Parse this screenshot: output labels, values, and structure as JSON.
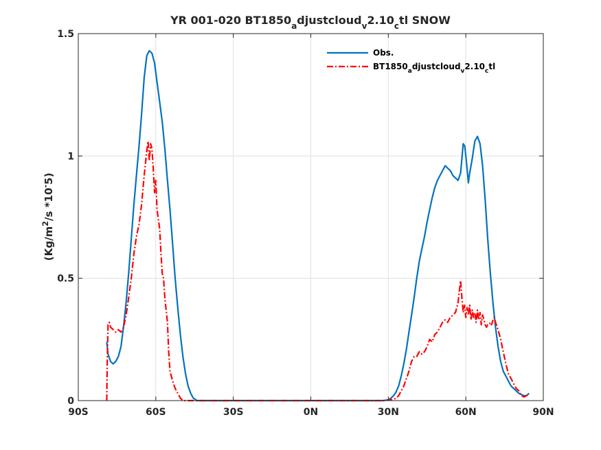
{
  "chart_data": {
    "type": "line",
    "title": "YR 001-020 BT1850_adjustcloud_v2.10_ctl SNOW",
    "ylabel": "(Kg/m^2/s *10^-5)",
    "xlabel": "",
    "xlim": [
      -90,
      90
    ],
    "ylim": [
      0,
      1.5
    ],
    "x_ticks": [
      -90,
      -60,
      -30,
      0,
      30,
      60,
      90
    ],
    "x_tick_labels": [
      "90S",
      "60S",
      "30S",
      "0N",
      "30N",
      "60N",
      "90N"
    ],
    "y_ticks": [
      0,
      0.5,
      1,
      1.5
    ],
    "y_tick_labels": [
      "0",
      "0.5",
      "1",
      "1.5"
    ],
    "grid": true,
    "legend_position": "top-right",
    "series": [
      {
        "name": "Obs.",
        "color": "#0072bd",
        "style": "solid",
        "points": [
          [
            -79,
            0.24
          ],
          [
            -78.5,
            0.19
          ],
          [
            -77.5,
            0.16
          ],
          [
            -76.5,
            0.15
          ],
          [
            -75.5,
            0.16
          ],
          [
            -74.5,
            0.18
          ],
          [
            -73.5,
            0.22
          ],
          [
            -72.5,
            0.3
          ],
          [
            -71.5,
            0.4
          ],
          [
            -70.5,
            0.52
          ],
          [
            -69.5,
            0.66
          ],
          [
            -68.5,
            0.8
          ],
          [
            -67.5,
            0.92
          ],
          [
            -66.5,
            1.04
          ],
          [
            -65.5,
            1.17
          ],
          [
            -64.5,
            1.32
          ],
          [
            -63.5,
            1.41
          ],
          [
            -62.5,
            1.43
          ],
          [
            -61.5,
            1.42
          ],
          [
            -60.5,
            1.38
          ],
          [
            -59.5,
            1.3
          ],
          [
            -58.5,
            1.22
          ],
          [
            -57.5,
            1.14
          ],
          [
            -56.5,
            1.03
          ],
          [
            -55.5,
            0.9
          ],
          [
            -54.5,
            0.78
          ],
          [
            -53.5,
            0.64
          ],
          [
            -52.5,
            0.5
          ],
          [
            -51.5,
            0.38
          ],
          [
            -50.5,
            0.27
          ],
          [
            -49.5,
            0.18
          ],
          [
            -48.5,
            0.11
          ],
          [
            -47.5,
            0.06
          ],
          [
            -46.5,
            0.03
          ],
          [
            -45.5,
            0.01
          ],
          [
            -44,
            0.0
          ],
          [
            -40,
            0.0
          ],
          [
            -30,
            0.0
          ],
          [
            -20,
            0.0
          ],
          [
            -10,
            0.0
          ],
          [
            0,
            0.0
          ],
          [
            10,
            0.0
          ],
          [
            20,
            0.0
          ],
          [
            28,
            0.0
          ],
          [
            30,
            0.003
          ],
          [
            31,
            0.01
          ],
          [
            32,
            0.02
          ],
          [
            33,
            0.035
          ],
          [
            34,
            0.06
          ],
          [
            35,
            0.1
          ],
          [
            36,
            0.15
          ],
          [
            37,
            0.21
          ],
          [
            38,
            0.28
          ],
          [
            39,
            0.35
          ],
          [
            40,
            0.42
          ],
          [
            41,
            0.5
          ],
          [
            42,
            0.57
          ],
          [
            43,
            0.62
          ],
          [
            44,
            0.67
          ],
          [
            45,
            0.73
          ],
          [
            46,
            0.78
          ],
          [
            47,
            0.83
          ],
          [
            48,
            0.87
          ],
          [
            49,
            0.9
          ],
          [
            50,
            0.92
          ],
          [
            51,
            0.94
          ],
          [
            52,
            0.96
          ],
          [
            53,
            0.95
          ],
          [
            54,
            0.94
          ],
          [
            55,
            0.92
          ],
          [
            56,
            0.91
          ],
          [
            57,
            0.9
          ],
          [
            58,
            0.93
          ],
          [
            59,
            1.05
          ],
          [
            59.6,
            1.04
          ],
          [
            60.5,
            0.95
          ],
          [
            61,
            0.89
          ],
          [
            61.5,
            0.93
          ],
          [
            62.5,
            0.99
          ],
          [
            63.5,
            1.06
          ],
          [
            64.5,
            1.08
          ],
          [
            65.5,
            1.05
          ],
          [
            66.5,
            0.96
          ],
          [
            67.5,
            0.82
          ],
          [
            68.5,
            0.66
          ],
          [
            69.5,
            0.52
          ],
          [
            70.5,
            0.4
          ],
          [
            71.5,
            0.3
          ],
          [
            72.5,
            0.22
          ],
          [
            73.5,
            0.16
          ],
          [
            74.5,
            0.12
          ],
          [
            75.5,
            0.1
          ],
          [
            76.5,
            0.08
          ],
          [
            77.5,
            0.06
          ],
          [
            78.5,
            0.05
          ],
          [
            79.5,
            0.04
          ],
          [
            80.5,
            0.03
          ],
          [
            81.5,
            0.025
          ],
          [
            82.5,
            0.02
          ],
          [
            83.5,
            0.02
          ],
          [
            84.5,
            0.03
          ]
        ]
      },
      {
        "name": "BT1850_adjustcloud_v2.10_ctl",
        "color": "#ff0000",
        "style": "dashdot",
        "points": [
          [
            -79,
            0.0
          ],
          [
            -78.8,
            0.15
          ],
          [
            -78.5,
            0.31
          ],
          [
            -78,
            0.32
          ],
          [
            -77.5,
            0.3
          ],
          [
            -76.5,
            0.29
          ],
          [
            -75.5,
            0.28
          ],
          [
            -74.5,
            0.29
          ],
          [
            -73.5,
            0.28
          ],
          [
            -72.5,
            0.3
          ],
          [
            -71.5,
            0.35
          ],
          [
            -70.5,
            0.42
          ],
          [
            -69.5,
            0.5
          ],
          [
            -68.5,
            0.6
          ],
          [
            -67.5,
            0.67
          ],
          [
            -66.5,
            0.72
          ],
          [
            -65.5,
            0.8
          ],
          [
            -64.5,
            0.92
          ],
          [
            -63.5,
            1.02
          ],
          [
            -63,
            1.06
          ],
          [
            -62.5,
            0.98
          ],
          [
            -62,
            1.05
          ],
          [
            -61.5,
            1.03
          ],
          [
            -61,
            0.95
          ],
          [
            -60.5,
            0.85
          ],
          [
            -60,
            0.9
          ],
          [
            -59.5,
            0.78
          ],
          [
            -58.5,
            0.7
          ],
          [
            -58,
            0.6
          ],
          [
            -57.5,
            0.52
          ],
          [
            -57,
            0.5
          ],
          [
            -56.5,
            0.42
          ],
          [
            -55.5,
            0.32
          ],
          [
            -55,
            0.2
          ],
          [
            -54.5,
            0.12
          ],
          [
            -53.5,
            0.08
          ],
          [
            -52.5,
            0.05
          ],
          [
            -51.5,
            0.03
          ],
          [
            -50.5,
            0.01
          ],
          [
            -49.5,
            0.0
          ],
          [
            -45,
            0.0
          ],
          [
            -30,
            0.0
          ],
          [
            -15,
            0.0
          ],
          [
            0,
            0.0
          ],
          [
            15,
            0.0
          ],
          [
            28,
            0.0
          ],
          [
            30,
            0.002
          ],
          [
            32,
            0.005
          ],
          [
            33,
            0.01
          ],
          [
            34,
            0.02
          ],
          [
            35,
            0.04
          ],
          [
            36,
            0.06
          ],
          [
            37,
            0.09
          ],
          [
            38,
            0.12
          ],
          [
            39,
            0.16
          ],
          [
            40,
            0.18
          ],
          [
            41,
            0.18
          ],
          [
            42,
            0.2
          ],
          [
            43,
            0.19
          ],
          [
            44,
            0.2
          ],
          [
            45,
            0.22
          ],
          [
            46,
            0.25
          ],
          [
            47,
            0.24
          ],
          [
            48,
            0.27
          ],
          [
            49,
            0.28
          ],
          [
            50,
            0.3
          ],
          [
            51,
            0.32
          ],
          [
            52,
            0.33
          ],
          [
            53,
            0.32
          ],
          [
            54,
            0.34
          ],
          [
            55,
            0.35
          ],
          [
            56,
            0.36
          ],
          [
            57,
            0.4
          ],
          [
            57.5,
            0.45
          ],
          [
            58,
            0.49
          ],
          [
            58.5,
            0.42
          ],
          [
            59,
            0.36
          ],
          [
            59.5,
            0.39
          ],
          [
            60,
            0.34
          ],
          [
            60.5,
            0.38
          ],
          [
            61,
            0.35
          ],
          [
            61.5,
            0.39
          ],
          [
            62,
            0.33
          ],
          [
            62.5,
            0.37
          ],
          [
            63,
            0.34
          ],
          [
            63.5,
            0.36
          ],
          [
            64,
            0.32
          ],
          [
            64.5,
            0.37
          ],
          [
            65,
            0.33
          ],
          [
            65.5,
            0.36
          ],
          [
            66,
            0.31
          ],
          [
            66.5,
            0.35
          ],
          [
            67,
            0.33
          ],
          [
            67.5,
            0.31
          ],
          [
            68,
            0.3
          ],
          [
            68.5,
            0.31
          ],
          [
            69,
            0.31
          ],
          [
            69.5,
            0.32
          ],
          [
            70,
            0.31
          ],
          [
            70.5,
            0.33
          ],
          [
            71,
            0.34
          ],
          [
            71.5,
            0.32
          ],
          [
            72.5,
            0.29
          ],
          [
            73.5,
            0.25
          ],
          [
            74.5,
            0.2
          ],
          [
            75.5,
            0.15
          ],
          [
            76.5,
            0.11
          ],
          [
            77.5,
            0.09
          ],
          [
            78.5,
            0.07
          ],
          [
            79.5,
            0.05
          ],
          [
            80.5,
            0.04
          ],
          [
            81.5,
            0.02
          ],
          [
            82.5,
            0.015
          ],
          [
            83.5,
            0.02
          ],
          [
            84,
            0.03
          ]
        ]
      }
    ]
  }
}
